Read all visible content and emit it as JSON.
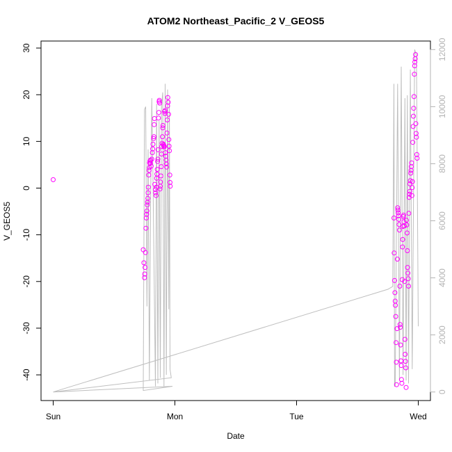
{
  "chart_data": {
    "type": "scatter",
    "title": "ATOM2 Northeast_Pacific_2 V_GEOS5",
    "xlabel": "Date",
    "ylabel": "V_GEOS5",
    "x_ticks": [
      "Sun",
      "Mon",
      "Tue",
      "Wed"
    ],
    "xlim": [
      -0.1,
      3.1
    ],
    "ylim": [
      -45.5,
      31.5
    ],
    "y_ticks": [
      -40,
      -30,
      -20,
      -10,
      0,
      10,
      20,
      30
    ],
    "y2lim": [
      -300,
      12300
    ],
    "y2_ticks": [
      0,
      2000,
      4000,
      6000,
      8000,
      10000,
      12000
    ],
    "grid": false,
    "legend": "none",
    "colors": {
      "points": "#ff00ff",
      "line": "#bebebe",
      "axis": "#000000",
      "right_axis": "#b3b3b3"
    },
    "series": [
      {
        "kind": "points",
        "axis": "left",
        "points": [
          [
            0.0,
            1.8
          ],
          [
            0.74,
            -13.2
          ],
          [
            0.745,
            -16.0
          ],
          [
            0.75,
            -19.2
          ],
          [
            0.752,
            -18.4
          ],
          [
            0.755,
            -17.0
          ],
          [
            0.758,
            -13.8
          ],
          [
            0.762,
            -8.6
          ],
          [
            0.765,
            -6.4
          ],
          [
            0.768,
            -5.6
          ],
          [
            0.77,
            -4.9
          ],
          [
            0.773,
            -3.6
          ],
          [
            0.775,
            -3.0
          ],
          [
            0.778,
            -2.2
          ],
          [
            0.78,
            -1.0
          ],
          [
            0.782,
            0.2
          ],
          [
            0.785,
            2.8
          ],
          [
            0.788,
            3.8
          ],
          [
            0.79,
            4.4
          ],
          [
            0.792,
            5.4
          ],
          [
            0.795,
            5.8
          ],
          [
            0.798,
            5.3
          ],
          [
            0.8,
            6.0
          ],
          [
            0.805,
            4.7
          ],
          [
            0.81,
            6.2
          ],
          [
            0.815,
            7.6
          ],
          [
            0.818,
            8.4
          ],
          [
            0.82,
            9.4
          ],
          [
            0.825,
            10.6
          ],
          [
            0.828,
            11.0
          ],
          [
            0.83,
            13.6
          ],
          [
            0.832,
            14.9
          ],
          [
            0.835,
            0.8
          ],
          [
            0.84,
            -0.3
          ],
          [
            0.842,
            -1.0
          ],
          [
            0.845,
            -1.6
          ],
          [
            0.848,
            0.2
          ],
          [
            0.85,
            2.1
          ],
          [
            0.852,
            3.0
          ],
          [
            0.855,
            4.0
          ],
          [
            0.858,
            5.7
          ],
          [
            0.86,
            6.2
          ],
          [
            0.862,
            8.2
          ],
          [
            0.865,
            15.0
          ],
          [
            0.868,
            16.2
          ],
          [
            0.87,
            18.5
          ],
          [
            0.872,
            18.8
          ],
          [
            0.875,
            18.2
          ],
          [
            0.878,
            -0.2
          ],
          [
            0.88,
            0.4
          ],
          [
            0.882,
            1.3
          ],
          [
            0.885,
            2.6
          ],
          [
            0.888,
            4.6
          ],
          [
            0.89,
            7.3
          ],
          [
            0.892,
            8.9
          ],
          [
            0.895,
            9.6
          ],
          [
            0.898,
            11.0
          ],
          [
            0.9,
            12.9
          ],
          [
            0.902,
            13.4
          ],
          [
            0.905,
            9.4
          ],
          [
            0.908,
            9.2
          ],
          [
            0.91,
            9.0
          ],
          [
            0.912,
            8.8
          ],
          [
            0.915,
            16.4
          ],
          [
            0.918,
            16.0
          ],
          [
            0.92,
            16.6
          ],
          [
            0.922,
            7.6
          ],
          [
            0.925,
            6.8
          ],
          [
            0.928,
            6.0
          ],
          [
            0.93,
            5.2
          ],
          [
            0.932,
            4.5
          ],
          [
            0.935,
            11.8
          ],
          [
            0.938,
            14.6
          ],
          [
            0.94,
            17.6
          ],
          [
            0.942,
            19.4
          ],
          [
            0.945,
            18.4
          ],
          [
            0.948,
            15.8
          ],
          [
            0.95,
            10.4
          ],
          [
            0.952,
            9.0
          ],
          [
            0.955,
            8.0
          ],
          [
            0.958,
            2.8
          ],
          [
            0.96,
            1.2
          ],
          [
            0.962,
            0.4
          ],
          [
            2.8,
            -6.4
          ],
          [
            2.802,
            -13.9
          ],
          [
            2.805,
            -19.8
          ],
          [
            2.808,
            -22.4
          ],
          [
            2.81,
            -24.2
          ],
          [
            2.812,
            -25.1
          ],
          [
            2.815,
            -27.5
          ],
          [
            2.818,
            -33.1
          ],
          [
            2.82,
            -37.3
          ],
          [
            2.822,
            -42.1
          ],
          [
            2.825,
            -30.1
          ],
          [
            2.828,
            -15.2
          ],
          [
            2.83,
            -4.2
          ],
          [
            2.832,
            -4.7
          ],
          [
            2.835,
            -5.3
          ],
          [
            2.838,
            -5.9
          ],
          [
            2.84,
            -6.7
          ],
          [
            2.842,
            -7.8
          ],
          [
            2.845,
            -9.0
          ],
          [
            2.848,
            -21.0
          ],
          [
            2.85,
            -29.2
          ],
          [
            2.852,
            -29.8
          ],
          [
            2.855,
            -33.6
          ],
          [
            2.858,
            -37.0
          ],
          [
            2.86,
            -38.0
          ],
          [
            2.862,
            -41.0
          ],
          [
            2.865,
            -41.8
          ],
          [
            2.868,
            -19.6
          ],
          [
            2.87,
            -12.6
          ],
          [
            2.872,
            -11.0
          ],
          [
            2.875,
            -8.2
          ],
          [
            2.878,
            -6.1
          ],
          [
            2.88,
            -5.8
          ],
          [
            2.882,
            -7.2
          ],
          [
            2.885,
            -8.1
          ],
          [
            2.888,
            -20.0
          ],
          [
            2.89,
            -32.4
          ],
          [
            2.892,
            -35.6
          ],
          [
            2.895,
            -37.1
          ],
          [
            2.898,
            -38.5
          ],
          [
            2.9,
            -42.7
          ],
          [
            2.902,
            -6.9
          ],
          [
            2.905,
            -7.9
          ],
          [
            2.908,
            -9.6
          ],
          [
            2.91,
            -13.4
          ],
          [
            2.912,
            -17.0
          ],
          [
            2.915,
            -18.2
          ],
          [
            2.918,
            -19.4
          ],
          [
            2.92,
            -21.0
          ],
          [
            2.922,
            -5.4
          ],
          [
            2.925,
            -2.0
          ],
          [
            2.928,
            -1.3
          ],
          [
            2.93,
            -0.7
          ],
          [
            2.932,
            0.9
          ],
          [
            2.935,
            1.6
          ],
          [
            2.938,
            3.2
          ],
          [
            2.94,
            3.8
          ],
          [
            2.942,
            4.6
          ],
          [
            2.945,
            5.4
          ],
          [
            2.948,
            -1.6
          ],
          [
            2.95,
            0.1
          ],
          [
            2.952,
            1.4
          ],
          [
            2.955,
            9.8
          ],
          [
            2.958,
            13.2
          ],
          [
            2.96,
            15.4
          ],
          [
            2.962,
            17.1
          ],
          [
            2.965,
            19.6
          ],
          [
            2.968,
            24.4
          ],
          [
            2.97,
            26.2
          ],
          [
            2.972,
            27.0
          ],
          [
            2.975,
            27.7
          ],
          [
            2.978,
            28.6
          ],
          [
            2.98,
            13.8
          ],
          [
            2.982,
            11.7
          ],
          [
            2.985,
            10.9
          ],
          [
            2.988,
            7.2
          ],
          [
            2.99,
            6.4
          ]
        ]
      },
      {
        "kind": "line",
        "axis": "right",
        "points": [
          [
            0.0,
            0
          ],
          [
            0.98,
            200
          ],
          [
            0.74,
            50
          ],
          [
            0.75,
            9900
          ],
          [
            0.76,
            10000
          ],
          [
            0.77,
            3000
          ],
          [
            0.78,
            8500
          ],
          [
            0.79,
            400
          ],
          [
            0.8,
            6500
          ],
          [
            0.81,
            10300
          ],
          [
            0.82,
            7500
          ],
          [
            0.84,
            200
          ],
          [
            0.85,
            10100
          ],
          [
            0.86,
            300
          ],
          [
            0.87,
            9500
          ],
          [
            0.88,
            500
          ],
          [
            0.89,
            10000
          ],
          [
            0.9,
            10500
          ],
          [
            0.91,
            200
          ],
          [
            0.92,
            10800
          ],
          [
            0.93,
            600
          ],
          [
            0.94,
            10600
          ],
          [
            0.95,
            2900
          ],
          [
            0.955,
            10200
          ],
          [
            0.96,
            800
          ],
          [
            0.97,
            500
          ],
          [
            0.0,
            0
          ],
          [
            2.75,
            3600
          ],
          [
            2.79,
            3700
          ],
          [
            2.8,
            10800
          ],
          [
            2.805,
            200
          ],
          [
            2.81,
            200
          ],
          [
            2.83,
            10800
          ],
          [
            2.845,
            400
          ],
          [
            2.86,
            11400
          ],
          [
            2.875,
            600
          ],
          [
            2.89,
            10300
          ],
          [
            2.9,
            400
          ],
          [
            2.91,
            10400
          ],
          [
            2.92,
            300
          ],
          [
            2.935,
            11300
          ],
          [
            2.95,
            800
          ],
          [
            2.97,
            12000
          ],
          [
            2.985,
            11800
          ],
          [
            3.0,
            2300
          ]
        ]
      }
    ]
  }
}
